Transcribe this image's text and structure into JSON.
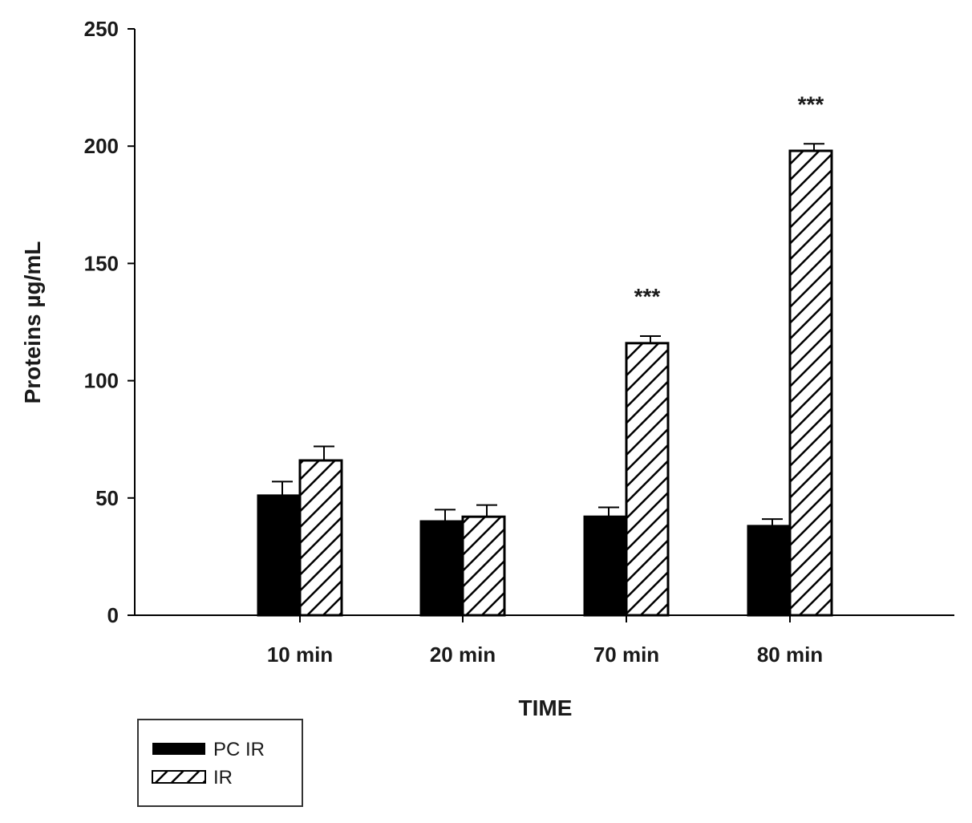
{
  "chart_data": {
    "type": "bar",
    "title": "",
    "xlabel": "TIME",
    "ylabel": "Proteins µg/mL",
    "ylim": [
      0,
      250
    ],
    "yticks": [
      0,
      50,
      100,
      150,
      200,
      250
    ],
    "categories": [
      "10 min",
      "20 min",
      "70 min",
      "80 min"
    ],
    "series": [
      {
        "name": "PC IR",
        "values": [
          51,
          40,
          42,
          38
        ],
        "errors": [
          6,
          5,
          4,
          3
        ],
        "fill": "solid",
        "color": "#000000"
      },
      {
        "name": "IR",
        "values": [
          66,
          42,
          116,
          198
        ],
        "errors": [
          6,
          5,
          3,
          3
        ],
        "fill": "hatched",
        "color": "#000000"
      }
    ],
    "annotations": [
      {
        "category": "70 min",
        "series": "IR",
        "text": "***"
      },
      {
        "category": "80 min",
        "series": "IR",
        "text": "***"
      }
    ],
    "legend": {
      "placement": "bottom-left",
      "entries": [
        "PC IR",
        "IR"
      ]
    },
    "grid": false
  }
}
